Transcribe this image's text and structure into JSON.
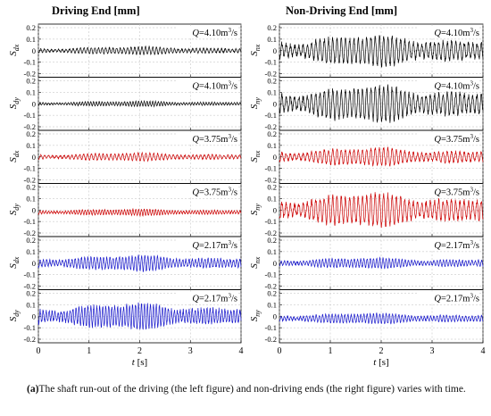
{
  "chart_data": [
    {
      "type": "line",
      "title": "Driving End [mm]",
      "xlabel": "t [s]",
      "xlim": [
        0,
        4
      ],
      "ylim": [
        -0.2,
        0.2
      ],
      "x_ticks": [
        "0",
        "1",
        "2",
        "3",
        "4"
      ],
      "y_ticks": [
        "0.2",
        "0.1",
        "0",
        "-0.1",
        "-0.2"
      ],
      "grid": true,
      "panels": [
        {
          "ylabel": "S",
          "ylabel_sub": "dx",
          "flow_label": "Q=4.10m³/s",
          "color": "#000000",
          "approx_amplitude": 0.03,
          "cycles_per_s": 14,
          "offset": 0.0
        },
        {
          "ylabel": "S",
          "ylabel_sub": "dy",
          "flow_label": "Q=4.10m³/s",
          "color": "#000000",
          "approx_amplitude": 0.02,
          "cycles_per_s": 18,
          "offset": 0.0
        },
        {
          "ylabel": "S",
          "ylabel_sub": "dx",
          "flow_label": "Q=3.75m³/s",
          "color": "#cc0000",
          "approx_amplitude": 0.03,
          "cycles_per_s": 13,
          "offset": 0.0
        },
        {
          "ylabel": "S",
          "ylabel_sub": "dy",
          "flow_label": "Q=3.75m³/s",
          "color": "#cc0000",
          "approx_amplitude": 0.025,
          "cycles_per_s": 18,
          "offset": -0.02
        },
        {
          "ylabel": "S",
          "ylabel_sub": "dx",
          "flow_label": "Q=2.17m³/s",
          "color": "#1a1acc",
          "approx_amplitude": 0.06,
          "cycles_per_s": 16,
          "offset": 0.0
        },
        {
          "ylabel": "S",
          "ylabel_sub": "dy",
          "flow_label": "Q=2.17m³/s",
          "color": "#1a1acc",
          "approx_amplitude": 0.1,
          "cycles_per_s": 17,
          "offset": 0.0
        }
      ]
    },
    {
      "type": "line",
      "title": "Non-Driving End [mm]",
      "xlabel": "t [s]",
      "xlim": [
        0,
        4
      ],
      "ylim": [
        -0.2,
        0.2
      ],
      "x_ticks": [
        "0",
        "1",
        "2",
        "3",
        "4"
      ],
      "y_ticks": [
        "0.2",
        "0.1",
        "0",
        "-0.1",
        "-0.2"
      ],
      "grid": true,
      "panels": [
        {
          "ylabel": "S",
          "ylabel_sub": "nx",
          "flow_label": "Q=4.10m³/s",
          "color": "#000000",
          "approx_amplitude": 0.12,
          "cycles_per_s": 12,
          "offset": 0.0
        },
        {
          "ylabel": "S",
          "ylabel_sub": "ny",
          "flow_label": "Q=4.10m³/s",
          "color": "#000000",
          "approx_amplitude": 0.14,
          "cycles_per_s": 12,
          "offset": 0.0
        },
        {
          "ylabel": "S",
          "ylabel_sub": "nx",
          "flow_label": "Q=3.75m³/s",
          "color": "#cc0000",
          "approx_amplitude": 0.07,
          "cycles_per_s": 12,
          "offset": 0.0
        },
        {
          "ylabel": "S",
          "ylabel_sub": "ny",
          "flow_label": "Q=3.75m³/s",
          "color": "#cc0000",
          "approx_amplitude": 0.13,
          "cycles_per_s": 12,
          "offset": 0.0
        },
        {
          "ylabel": "S",
          "ylabel_sub": "nx",
          "flow_label": "Q=2.17m³/s",
          "color": "#1a1acc",
          "approx_amplitude": 0.04,
          "cycles_per_s": 16,
          "offset": 0.0
        },
        {
          "ylabel": "S",
          "ylabel_sub": "ny",
          "flow_label": "Q=2.17m³/s",
          "color": "#1a1acc",
          "approx_amplitude": 0.04,
          "cycles_per_s": 16,
          "offset": -0.02
        }
      ]
    }
  ],
  "caption": {
    "label": "(a)",
    "text": "The shaft run-out of the driving (the left figure) and non-driving ends (the right figure) varies with time."
  }
}
